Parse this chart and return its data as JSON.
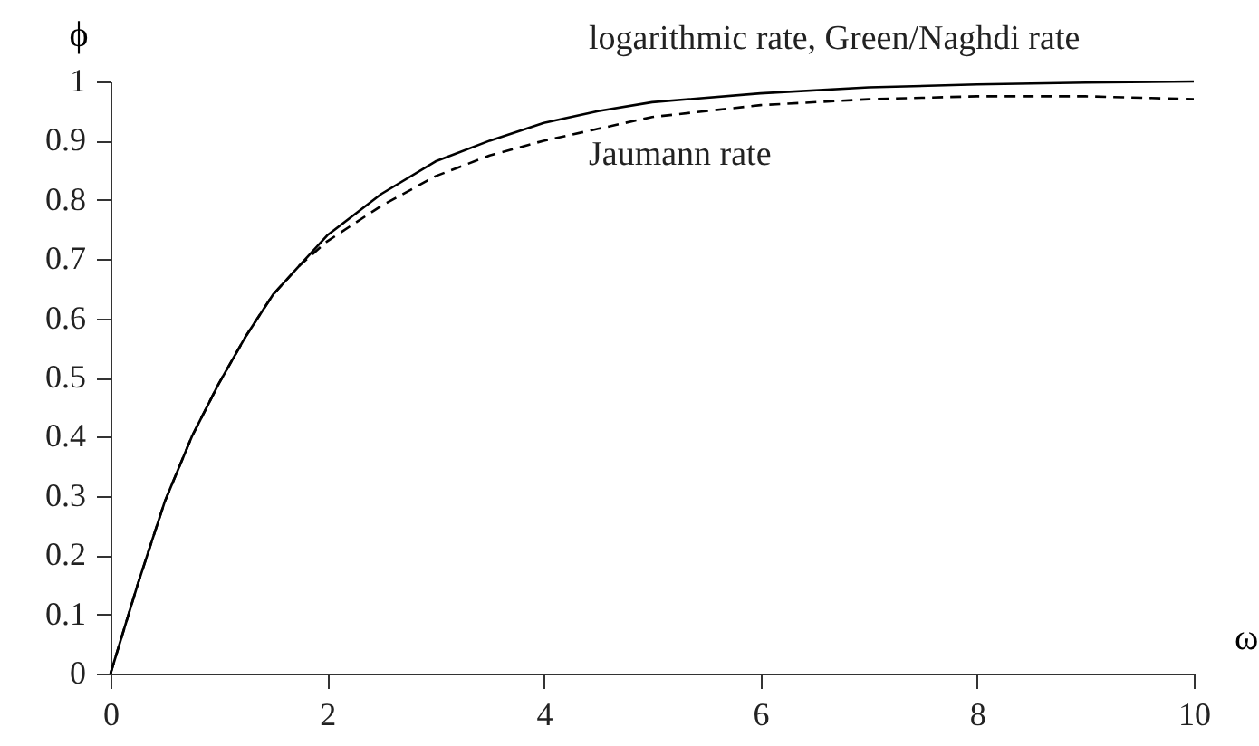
{
  "chart_data": {
    "type": "line",
    "xlabel": "ω",
    "ylabel": "ϕ",
    "xlim": [
      0,
      10
    ],
    "xticks": [
      0,
      2,
      4,
      6,
      8,
      10
    ],
    "ylim": [
      0,
      1
    ],
    "yticks": [
      0,
      0.1,
      0.2,
      0.3,
      0.4,
      0.5,
      0.6,
      0.7,
      0.8,
      0.9,
      1
    ],
    "grid": false,
    "series": [
      {
        "name": "logarithmic rate, Green/Naghdi rate",
        "color": "#000000",
        "line_style": "solid",
        "x": [
          0,
          0.25,
          0.5,
          0.75,
          1,
          1.25,
          1.5,
          1.75,
          2,
          2.5,
          3,
          3.5,
          4,
          4.5,
          5,
          6,
          7,
          8,
          9,
          10
        ],
        "values": [
          0,
          0.15,
          0.29,
          0.4,
          0.49,
          0.57,
          0.64,
          0.69,
          0.74,
          0.81,
          0.865,
          0.9,
          0.93,
          0.95,
          0.965,
          0.98,
          0.99,
          0.995,
          0.998,
          1
        ]
      },
      {
        "name": "Jaumann rate",
        "color": "#000000",
        "line_style": "dashed",
        "x": [
          0,
          0.25,
          0.5,
          0.75,
          1,
          1.25,
          1.5,
          1.75,
          2,
          2.5,
          3,
          3.5,
          4,
          4.5,
          5,
          6,
          7,
          8,
          9,
          10
        ],
        "values": [
          0,
          0.15,
          0.29,
          0.4,
          0.49,
          0.57,
          0.64,
          0.69,
          0.73,
          0.79,
          0.84,
          0.875,
          0.9,
          0.92,
          0.94,
          0.96,
          0.97,
          0.975,
          0.975,
          0.97
        ]
      }
    ]
  }
}
